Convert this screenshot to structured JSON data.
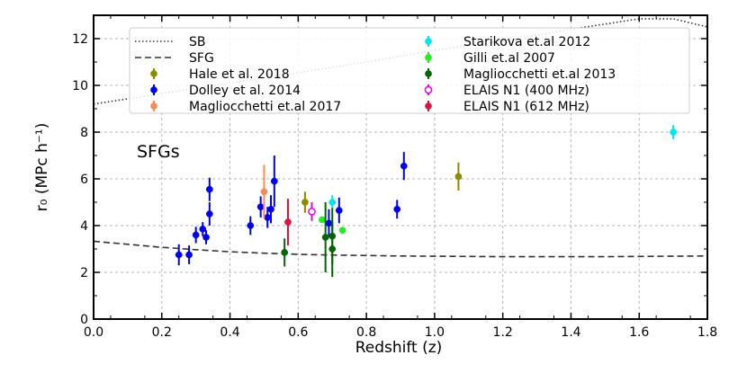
{
  "chart_data": {
    "type": "scatter",
    "xlabel": "Redshift (z)",
    "ylabel": "r₀ (MPc h⁻¹)",
    "xlim": [
      0.0,
      1.8
    ],
    "ylim": [
      0,
      13
    ],
    "xticks": [
      "0.0",
      "0.2",
      "0.4",
      "0.6",
      "0.8",
      "1.0",
      "1.2",
      "1.4",
      "1.6",
      "1.8"
    ],
    "yticks": [
      "0",
      "2",
      "4",
      "6",
      "8",
      "10",
      "12"
    ],
    "grid": true,
    "legend_position": "top",
    "annotation": "SFGs",
    "lines": [
      {
        "name": "SB",
        "style": "dotted",
        "color": "#333333",
        "x": [
          0.0,
          0.2,
          0.4,
          0.6,
          0.8,
          1.0,
          1.2,
          1.4,
          1.6,
          1.7,
          1.8
        ],
        "y": [
          9.2,
          9.65,
          10.1,
          10.55,
          11.0,
          11.5,
          11.9,
          12.4,
          12.85,
          12.85,
          12.5
        ]
      },
      {
        "name": "SFG",
        "style": "dashed",
        "color": "#333333",
        "x": [
          0.0,
          0.1,
          0.2,
          0.3,
          0.4,
          0.5,
          0.6,
          0.7,
          0.8,
          0.9,
          1.0,
          1.1,
          1.2,
          1.3,
          1.4,
          1.5,
          1.6,
          1.7,
          1.8
        ],
        "y": [
          3.33,
          3.2,
          3.07,
          2.97,
          2.88,
          2.82,
          2.77,
          2.74,
          2.72,
          2.7,
          2.69,
          2.68,
          2.67,
          2.67,
          2.67,
          2.67,
          2.68,
          2.69,
          2.7
        ]
      }
    ],
    "series": [
      {
        "name": "Hale et al. 2018",
        "color": "#8b8b00",
        "points": [
          {
            "x": 0.62,
            "y": 5.0,
            "err": 0.45
          },
          {
            "x": 1.07,
            "y": 6.1,
            "err": 0.6
          }
        ]
      },
      {
        "name": "Dolley et al. 2014",
        "color": "#0000ee",
        "points": [
          {
            "x": 0.25,
            "y": 2.75,
            "err": 0.45
          },
          {
            "x": 0.28,
            "y": 2.75,
            "err": 0.4
          },
          {
            "x": 0.3,
            "y": 3.6,
            "err": 0.35
          },
          {
            "x": 0.32,
            "y": 3.85,
            "err": 0.3
          },
          {
            "x": 0.33,
            "y": 3.5,
            "err": 0.3
          },
          {
            "x": 0.34,
            "y": 4.5,
            "err": 0.5
          },
          {
            "x": 0.34,
            "y": 5.55,
            "err": 0.5
          },
          {
            "x": 0.46,
            "y": 4.0,
            "err": 0.4
          },
          {
            "x": 0.49,
            "y": 4.8,
            "err": 0.45
          },
          {
            "x": 0.51,
            "y": 4.35,
            "err": 0.45
          },
          {
            "x": 0.52,
            "y": 4.7,
            "err": 0.6
          },
          {
            "x": 0.53,
            "y": 5.9,
            "err": 1.1
          },
          {
            "x": 0.69,
            "y": 4.1,
            "err": 0.6
          },
          {
            "x": 0.72,
            "y": 4.65,
            "err": 0.55
          },
          {
            "x": 0.89,
            "y": 4.7,
            "err": 0.4
          },
          {
            "x": 0.91,
            "y": 6.55,
            "err": 0.6
          }
        ]
      },
      {
        "name": "Magliocchetti et.al 2017",
        "color": "#f28c5a",
        "points": [
          {
            "x": 0.5,
            "y": 5.45,
            "err": 1.15
          }
        ]
      },
      {
        "name": "Starikova et.al 2012",
        "color": "#00e5ee",
        "points": [
          {
            "x": 0.7,
            "y": 5.0,
            "err": 0.3
          },
          {
            "x": 1.7,
            "y": 8.0,
            "err": 0.3
          }
        ]
      },
      {
        "name": "Gilli et.al 2007",
        "color": "#22ee22",
        "points": [
          {
            "x": 0.67,
            "y": 4.25,
            "err": 0.1
          },
          {
            "x": 0.73,
            "y": 3.8,
            "err": 0.1
          }
        ]
      },
      {
        "name": "Magliocchetti et.al 2013",
        "color": "#006400",
        "points": [
          {
            "x": 0.56,
            "y": 2.85,
            "err": 0.6
          },
          {
            "x": 0.68,
            "y": 3.5,
            "err": 1.5
          },
          {
            "x": 0.7,
            "y": 3.55,
            "err": 1.2
          },
          {
            "x": 0.7,
            "y": 3.0,
            "err": 1.2
          }
        ]
      },
      {
        "name": "ELAIS N1 (400 MHz)",
        "color": "#ee00ee",
        "open": true,
        "points": [
          {
            "x": 0.64,
            "y": 4.6,
            "err": 0.4
          }
        ]
      },
      {
        "name": "ELAIS N1 (612 MHz)",
        "color": "#dc143c",
        "points": [
          {
            "x": 0.57,
            "y": 4.15,
            "err": 1.0
          }
        ]
      }
    ]
  }
}
